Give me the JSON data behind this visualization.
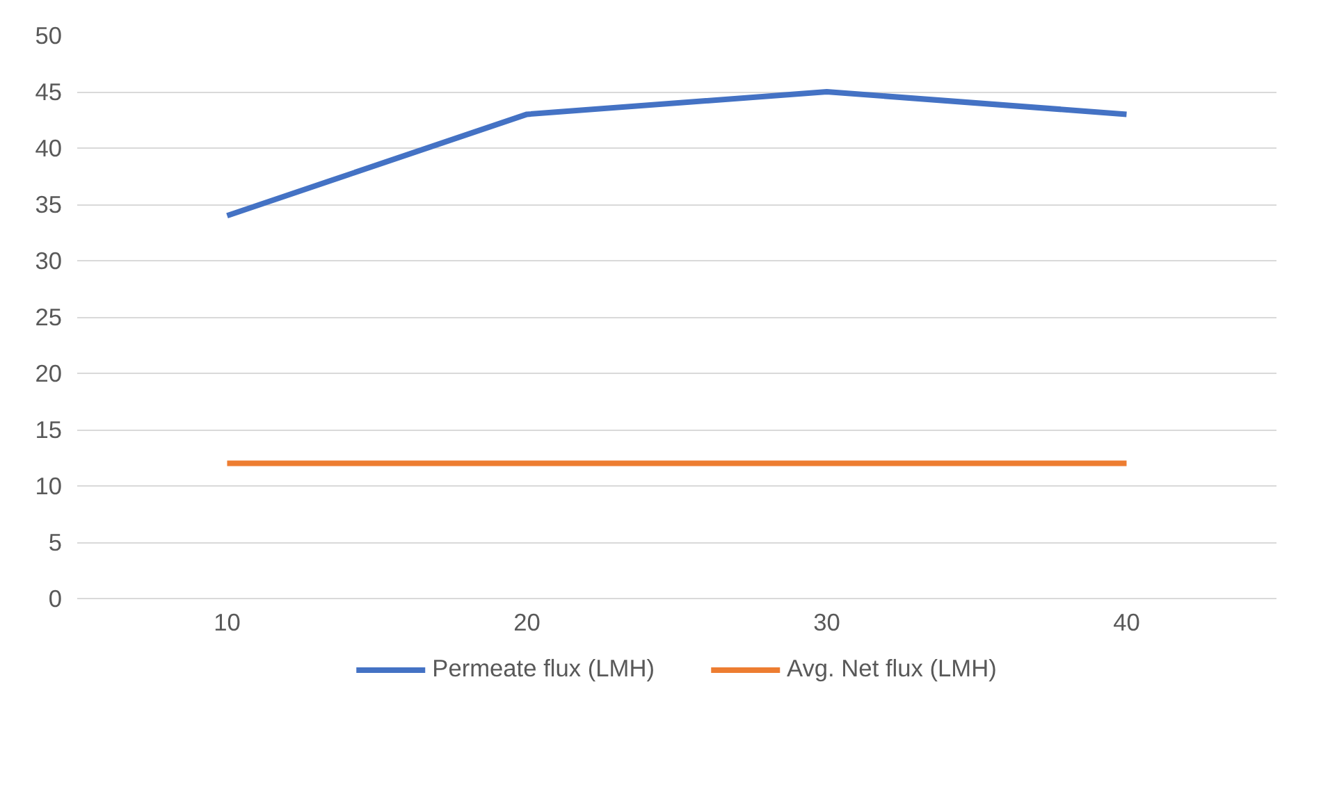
{
  "chart_data": {
    "type": "line",
    "categories": [
      "10",
      "20",
      "30",
      "40"
    ],
    "series": [
      {
        "name": "Permeate flux (LMH)",
        "color": "#4472c4",
        "values": [
          34,
          43,
          45,
          43
        ]
      },
      {
        "name": "Avg. Net flux (LMH)",
        "color": "#ed7d31",
        "values": [
          12,
          12,
          12,
          12
        ]
      }
    ],
    "ylim": [
      0,
      50
    ],
    "yticks": [
      0,
      5,
      10,
      15,
      20,
      25,
      30,
      35,
      40,
      45,
      50
    ],
    "grid": "y",
    "legend": "bottom",
    "marker": "none",
    "line_style": "solid"
  }
}
